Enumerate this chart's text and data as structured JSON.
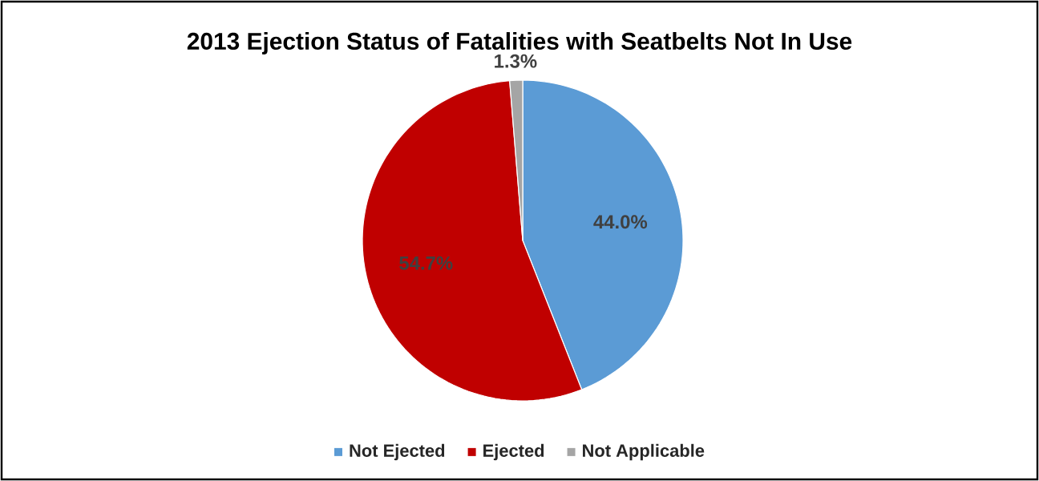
{
  "chart_data": {
    "type": "pie",
    "title": "2013 Ejection Status of Fatalities with Seatbelts Not In Use",
    "categories": [
      "Not Ejected",
      "Ejected",
      "Not Applicable"
    ],
    "values": [
      44.0,
      54.7,
      1.3
    ],
    "colors": [
      "#5b9bd5",
      "#c00000",
      "#a5a5a5"
    ],
    "value_labels": [
      "44.0%",
      "54.7%",
      "1.3%"
    ],
    "legend": "bottom"
  }
}
